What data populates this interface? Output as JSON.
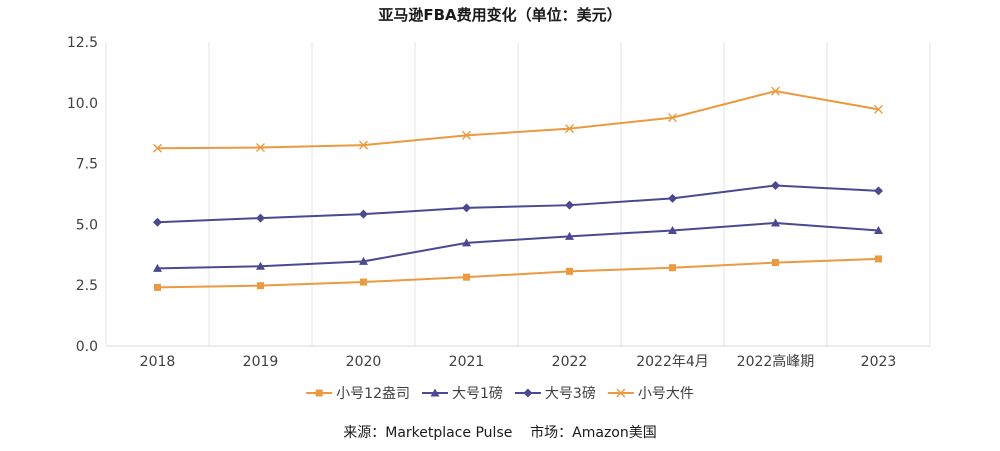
{
  "chart_data": {
    "type": "line",
    "title": "亚马逊FBA费用变化（单位：美元）",
    "categories": [
      "2018",
      "2019",
      "2020",
      "2021",
      "2022",
      "2022年4月",
      "2022高峰期",
      "2023"
    ],
    "ylim": [
      0,
      12.5
    ],
    "yticks": [
      "0.0",
      "2.5",
      "5.0",
      "7.5",
      "10.0",
      "12.5"
    ],
    "grid": "vertical",
    "legend_position": "bottom",
    "series": [
      {
        "name": "小号12盎司",
        "color": "#EB9A3F",
        "marker": "square",
        "values": [
          2.41,
          2.48,
          2.63,
          2.83,
          3.07,
          3.22,
          3.43,
          3.58
        ]
      },
      {
        "name": "大号1磅",
        "color": "#4B4990",
        "marker": "triangle",
        "values": [
          3.19,
          3.28,
          3.48,
          4.24,
          4.51,
          4.75,
          5.06,
          4.75
        ]
      },
      {
        "name": "大号3磅",
        "color": "#4B4990",
        "marker": "diamond",
        "values": [
          5.09,
          5.26,
          5.42,
          5.68,
          5.79,
          6.07,
          6.6,
          6.38
        ]
      },
      {
        "name": "小号大件",
        "color": "#EB9A3F",
        "marker": "x",
        "values": [
          8.13,
          8.16,
          8.26,
          8.66,
          8.94,
          9.39,
          10.48,
          9.73
        ]
      }
    ],
    "source": "来源：Marketplace Pulse    市场：Amazon美国"
  }
}
